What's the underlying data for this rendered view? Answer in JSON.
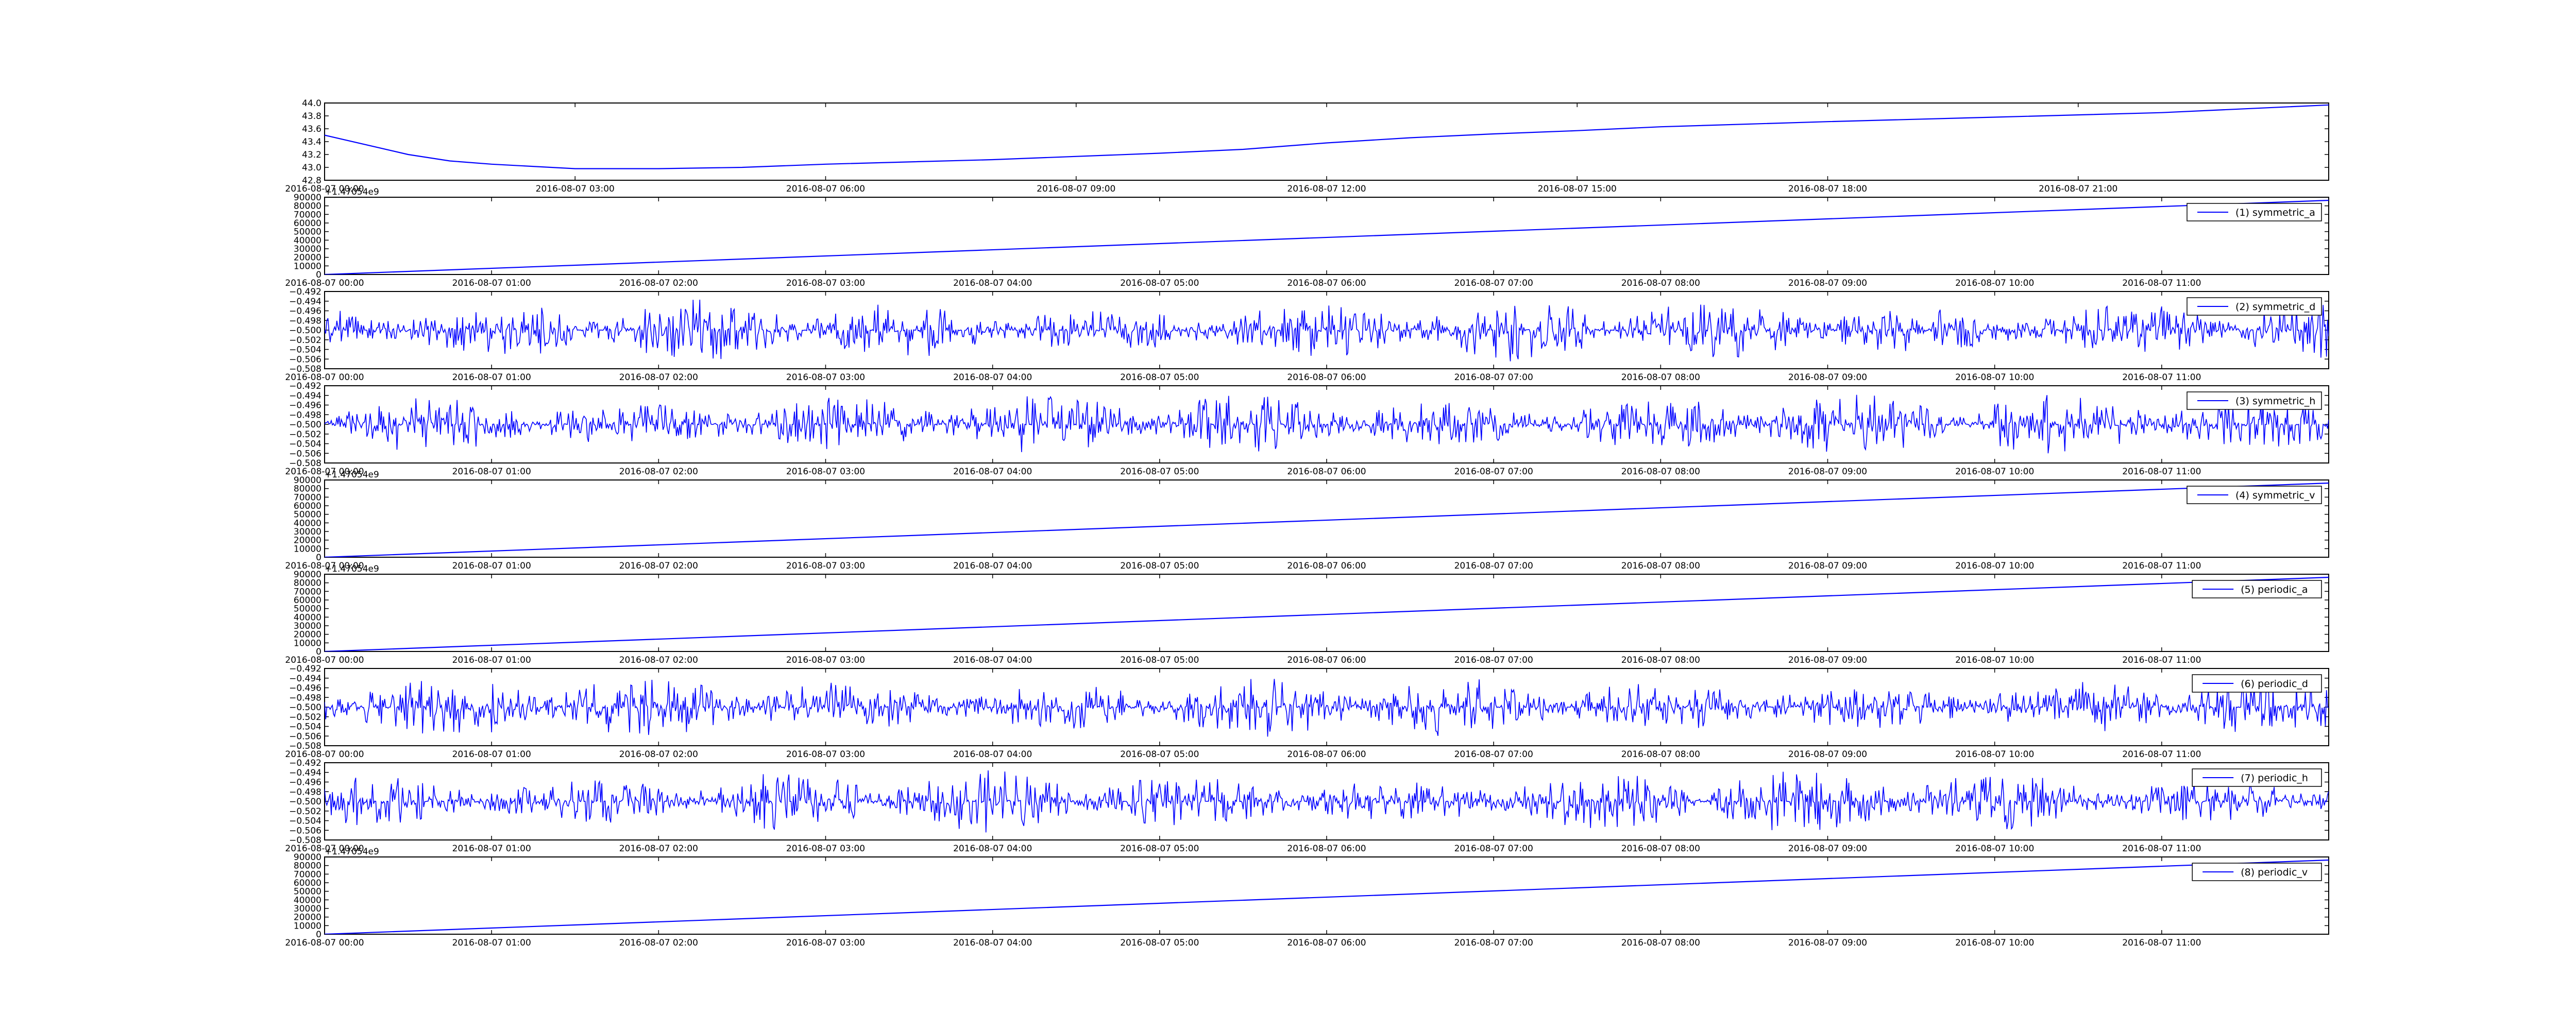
{
  "chart_data": [
    {
      "type": "line",
      "x_label_type": "datetime",
      "ylim": [
        42.8,
        44.0
      ],
      "xlim": [
        "2016-08-07 00:00",
        "2016-08-08 00:00"
      ],
      "yticks": [
        "42.8",
        "43.0",
        "43.2",
        "43.4",
        "43.6",
        "43.8",
        "44.0"
      ],
      "xticks": [
        "2016-08-07 00:00",
        "2016-08-07 03:00",
        "2016-08-07 06:00",
        "2016-08-07 09:00",
        "2016-08-07 12:00",
        "2016-08-07 15:00",
        "2016-08-07 18:00",
        "2016-08-07 21:00"
      ],
      "series": [
        {
          "color": "#0000ff",
          "x": [
            "2016-08-07 00:00",
            "2016-08-07 00:30",
            "2016-08-07 01:00",
            "2016-08-07 01:30",
            "2016-08-07 02:00",
            "2016-08-07 03:00",
            "2016-08-07 04:00",
            "2016-08-07 05:00",
            "2016-08-07 06:00",
            "2016-08-07 08:00",
            "2016-08-07 10:00",
            "2016-08-07 11:00",
            "2016-08-07 12:00",
            "2016-08-07 13:00",
            "2016-08-07 14:00",
            "2016-08-07 15:00",
            "2016-08-07 16:00",
            "2016-08-07 18:00",
            "2016-08-07 20:00",
            "2016-08-07 22:00",
            "2016-08-08 00:00"
          ],
          "values": [
            43.5,
            43.35,
            43.2,
            43.1,
            43.05,
            42.98,
            42.98,
            43.0,
            43.05,
            43.12,
            43.22,
            43.28,
            43.38,
            43.46,
            43.52,
            43.57,
            43.63,
            43.71,
            43.78,
            43.85,
            43.97
          ]
        }
      ]
    },
    {
      "type": "line",
      "x_label_type": "datetime",
      "offset_label": "+1.47054e9",
      "ylim": [
        0,
        90000
      ],
      "xlim": [
        "2016-08-07 00:00",
        "2016-08-07 12:00"
      ],
      "yticks": [
        "0",
        "10000",
        "20000",
        "30000",
        "40000",
        "50000",
        "60000",
        "70000",
        "80000",
        "90000"
      ],
      "xticks": [
        "2016-08-07 00:00",
        "2016-08-07 01:00",
        "2016-08-07 02:00",
        "2016-08-07 03:00",
        "2016-08-07 04:00",
        "2016-08-07 05:00",
        "2016-08-07 06:00",
        "2016-08-07 07:00",
        "2016-08-07 08:00",
        "2016-08-07 09:00",
        "2016-08-07 10:00",
        "2016-08-07 11:00"
      ],
      "series": [
        {
          "name": "(1) symmetric_a",
          "color": "#0000ff",
          "kind": "linear",
          "x": [
            "2016-08-07 00:00",
            "2016-08-07 12:00"
          ],
          "values": [
            0,
            86400
          ]
        }
      ]
    },
    {
      "type": "line",
      "x_label_type": "datetime",
      "ylim": [
        -0.508,
        -0.492
      ],
      "xlim": [
        "2016-08-07 00:00",
        "2016-08-07 12:00"
      ],
      "yticks": [
        "−0.508",
        "−0.506",
        "−0.504",
        "−0.502",
        "−0.500",
        "−0.498",
        "−0.496",
        "−0.494",
        "−0.492"
      ],
      "xticks": [
        "2016-08-07 00:00",
        "2016-08-07 01:00",
        "2016-08-07 02:00",
        "2016-08-07 03:00",
        "2016-08-07 04:00",
        "2016-08-07 05:00",
        "2016-08-07 06:00",
        "2016-08-07 07:00",
        "2016-08-07 08:00",
        "2016-08-07 09:00",
        "2016-08-07 10:00",
        "2016-08-07 11:00"
      ],
      "series": [
        {
          "name": "(2) symmetric_d",
          "color": "#0000ff",
          "kind": "noise",
          "center": -0.5,
          "amplitude_max": 0.0065,
          "seed": 2
        }
      ]
    },
    {
      "type": "line",
      "x_label_type": "datetime",
      "ylim": [
        -0.508,
        -0.492
      ],
      "xlim": [
        "2016-08-07 00:00",
        "2016-08-07 12:00"
      ],
      "yticks": [
        "−0.508",
        "−0.506",
        "−0.504",
        "−0.502",
        "−0.500",
        "−0.498",
        "−0.496",
        "−0.494",
        "−0.492"
      ],
      "xticks": [
        "2016-08-07 00:00",
        "2016-08-07 01:00",
        "2016-08-07 02:00",
        "2016-08-07 03:00",
        "2016-08-07 04:00",
        "2016-08-07 05:00",
        "2016-08-07 06:00",
        "2016-08-07 07:00",
        "2016-08-07 08:00",
        "2016-08-07 09:00",
        "2016-08-07 10:00",
        "2016-08-07 11:00"
      ],
      "series": [
        {
          "name": "(3) symmetric_h",
          "color": "#0000ff",
          "kind": "noise",
          "center": -0.5,
          "amplitude_max": 0.0065,
          "seed": 3
        }
      ]
    },
    {
      "type": "line",
      "x_label_type": "datetime",
      "offset_label": "+1.47054e9",
      "ylim": [
        0,
        90000
      ],
      "xlim": [
        "2016-08-07 00:00",
        "2016-08-07 12:00"
      ],
      "yticks": [
        "0",
        "10000",
        "20000",
        "30000",
        "40000",
        "50000",
        "60000",
        "70000",
        "80000",
        "90000"
      ],
      "xticks": [
        "2016-08-07 00:00",
        "2016-08-07 01:00",
        "2016-08-07 02:00",
        "2016-08-07 03:00",
        "2016-08-07 04:00",
        "2016-08-07 05:00",
        "2016-08-07 06:00",
        "2016-08-07 07:00",
        "2016-08-07 08:00",
        "2016-08-07 09:00",
        "2016-08-07 10:00",
        "2016-08-07 11:00"
      ],
      "series": [
        {
          "name": "(4) symmetric_v",
          "color": "#0000ff",
          "kind": "linear",
          "x": [
            "2016-08-07 00:00",
            "2016-08-07 12:00"
          ],
          "values": [
            0,
            86400
          ]
        }
      ]
    },
    {
      "type": "line",
      "x_label_type": "datetime",
      "offset_label": "+1.47054e9",
      "ylim": [
        0,
        90000
      ],
      "xlim": [
        "2016-08-07 00:00",
        "2016-08-07 12:00"
      ],
      "yticks": [
        "0",
        "10000",
        "20000",
        "30000",
        "40000",
        "50000",
        "60000",
        "70000",
        "80000",
        "90000"
      ],
      "xticks": [
        "2016-08-07 00:00",
        "2016-08-07 01:00",
        "2016-08-07 02:00",
        "2016-08-07 03:00",
        "2016-08-07 04:00",
        "2016-08-07 05:00",
        "2016-08-07 06:00",
        "2016-08-07 07:00",
        "2016-08-07 08:00",
        "2016-08-07 09:00",
        "2016-08-07 10:00",
        "2016-08-07 11:00"
      ],
      "series": [
        {
          "name": "(5) periodic_a",
          "color": "#0000ff",
          "kind": "linear",
          "x": [
            "2016-08-07 00:00",
            "2016-08-07 12:00"
          ],
          "values": [
            0,
            86400
          ]
        }
      ]
    },
    {
      "type": "line",
      "x_label_type": "datetime",
      "ylim": [
        -0.508,
        -0.492
      ],
      "xlim": [
        "2016-08-07 00:00",
        "2016-08-07 12:00"
      ],
      "yticks": [
        "−0.508",
        "−0.506",
        "−0.504",
        "−0.502",
        "−0.500",
        "−0.498",
        "−0.496",
        "−0.494",
        "−0.492"
      ],
      "xticks": [
        "2016-08-07 00:00",
        "2016-08-07 01:00",
        "2016-08-07 02:00",
        "2016-08-07 03:00",
        "2016-08-07 04:00",
        "2016-08-07 05:00",
        "2016-08-07 06:00",
        "2016-08-07 07:00",
        "2016-08-07 08:00",
        "2016-08-07 09:00",
        "2016-08-07 10:00",
        "2016-08-07 11:00"
      ],
      "series": [
        {
          "name": "(6) periodic_d",
          "color": "#0000ff",
          "kind": "noise",
          "center": -0.5,
          "amplitude_max": 0.0065,
          "seed": 6
        }
      ]
    },
    {
      "type": "line",
      "x_label_type": "datetime",
      "ylim": [
        -0.508,
        -0.492
      ],
      "xlim": [
        "2016-08-07 00:00",
        "2016-08-07 12:00"
      ],
      "yticks": [
        "−0.508",
        "−0.506",
        "−0.504",
        "−0.502",
        "−0.500",
        "−0.498",
        "−0.496",
        "−0.494",
        "−0.492"
      ],
      "xticks": [
        "2016-08-07 00:00",
        "2016-08-07 01:00",
        "2016-08-07 02:00",
        "2016-08-07 03:00",
        "2016-08-07 04:00",
        "2016-08-07 05:00",
        "2016-08-07 06:00",
        "2016-08-07 07:00",
        "2016-08-07 08:00",
        "2016-08-07 09:00",
        "2016-08-07 10:00",
        "2016-08-07 11:00"
      ],
      "series": [
        {
          "name": "(7) periodic_h",
          "color": "#0000ff",
          "kind": "noise",
          "center": -0.5,
          "amplitude_max": 0.0065,
          "seed": 7
        }
      ]
    },
    {
      "type": "line",
      "x_label_type": "datetime",
      "offset_label": "+1.47054e9",
      "ylim": [
        0,
        90000
      ],
      "xlim": [
        "2016-08-07 00:00",
        "2016-08-07 12:00"
      ],
      "yticks": [
        "0",
        "10000",
        "20000",
        "30000",
        "40000",
        "50000",
        "60000",
        "70000",
        "80000",
        "90000"
      ],
      "xticks": [
        "2016-08-07 00:00",
        "2016-08-07 01:00",
        "2016-08-07 02:00",
        "2016-08-07 03:00",
        "2016-08-07 04:00",
        "2016-08-07 05:00",
        "2016-08-07 06:00",
        "2016-08-07 07:00",
        "2016-08-07 08:00",
        "2016-08-07 09:00",
        "2016-08-07 10:00",
        "2016-08-07 11:00"
      ],
      "series": [
        {
          "name": "(8) periodic_v",
          "color": "#0000ff",
          "kind": "linear",
          "x": [
            "2016-08-07 00:00",
            "2016-08-07 12:00"
          ],
          "values": [
            0,
            86400
          ]
        }
      ]
    }
  ]
}
